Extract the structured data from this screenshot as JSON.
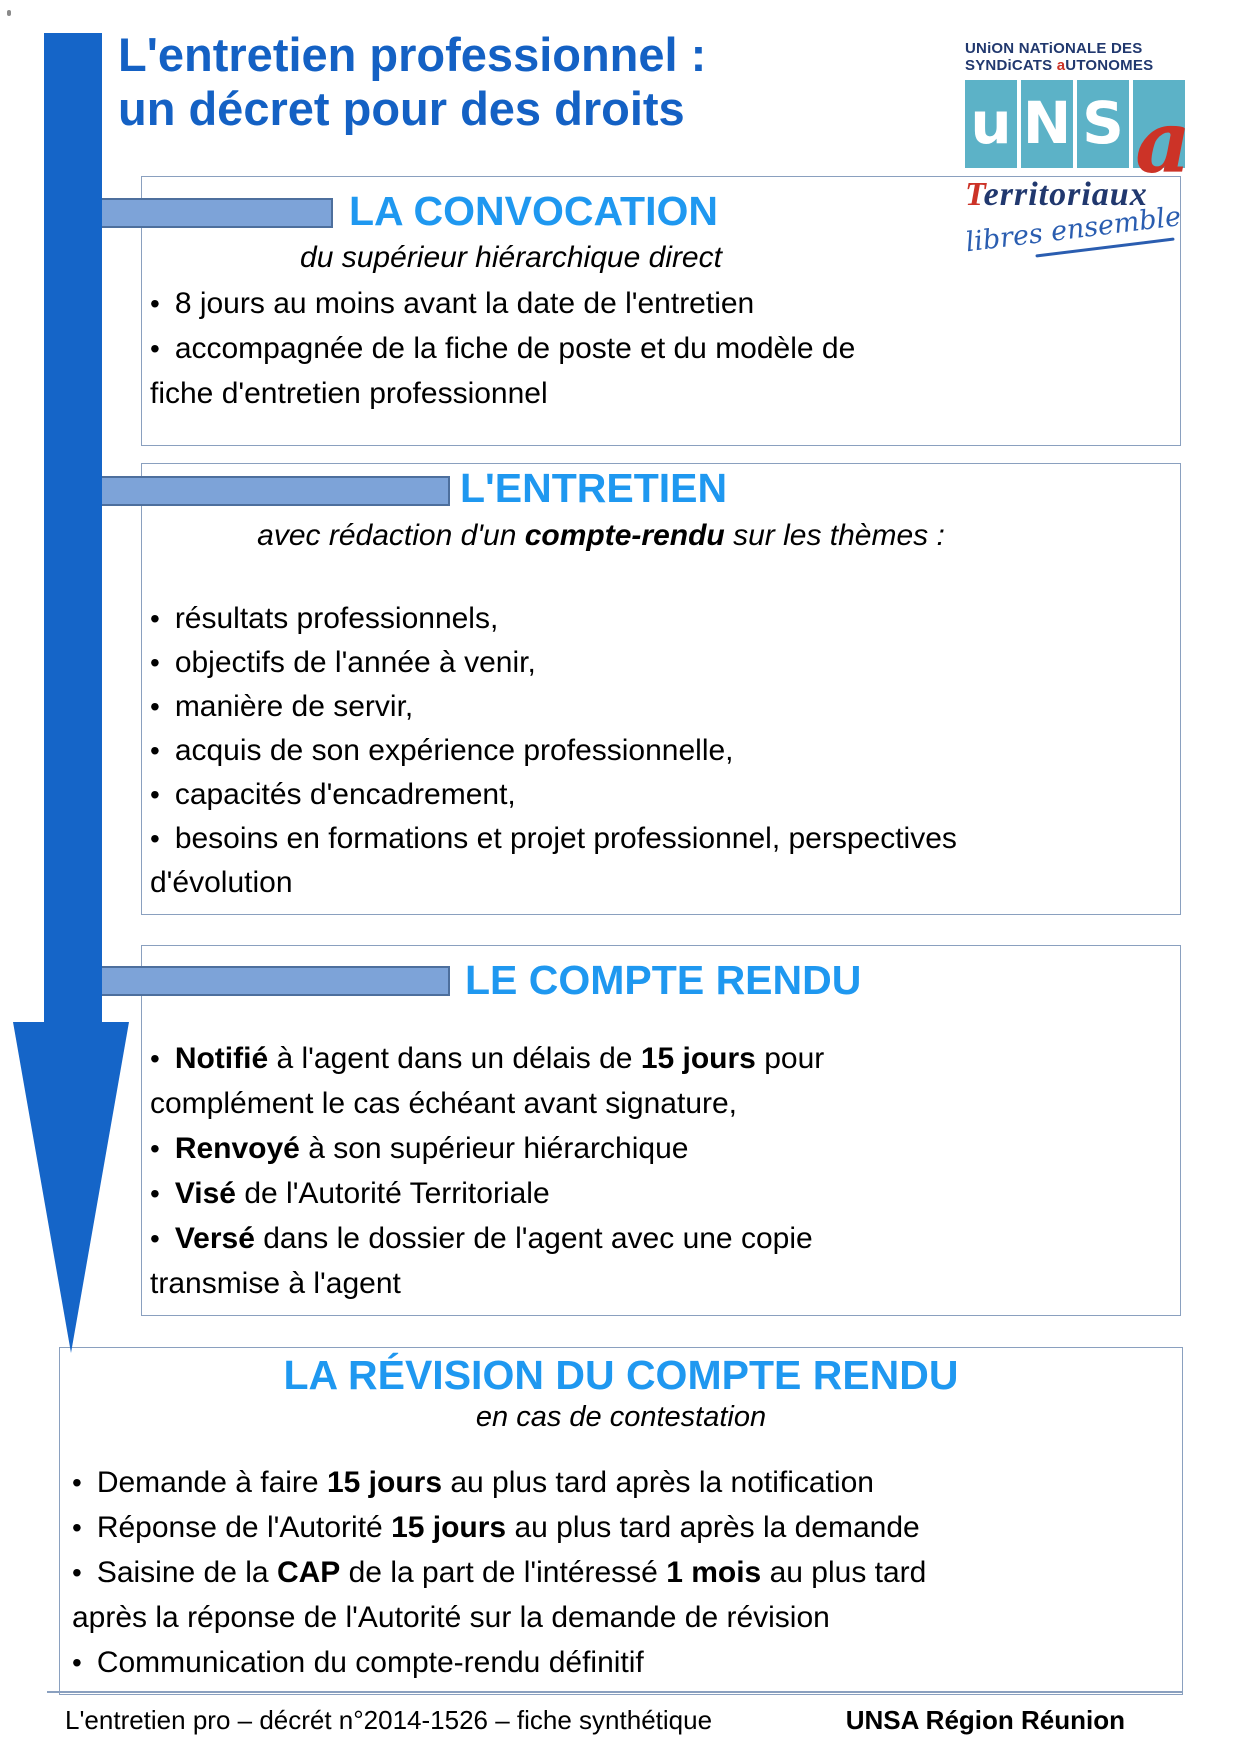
{
  "bullet_char": "•",
  "title": {
    "line1": "L'entretien professionnel :",
    "line2": "un décret pour des droits"
  },
  "logo": {
    "top_line1": "UNiON NATiONALE DES",
    "top_line2_pre": "SYNDiCATS ",
    "top_line2_red": "a",
    "top_line2_post": "UTONOMES",
    "letter_u": "u",
    "letter_n": "N",
    "letter_s": "S",
    "letter_a": "a",
    "territoriaux_t": "T",
    "territoriaux_rest": "erritoriaux",
    "script": "libres ensemble"
  },
  "sections": [
    {
      "title": "LA CONVOCATION",
      "subtitle": [
        {
          "t": "du supérieur hiérarchique direct"
        }
      ],
      "bullets": [
        [
          {
            "t": "8 jours au moins avant la date de l'entretien"
          }
        ],
        [
          {
            "t": "accompagnée de la fiche de poste et du modèle de\nfiche d'entretien professionnel"
          }
        ]
      ]
    },
    {
      "title": "L'ENTRETIEN",
      "subtitle": [
        {
          "t": "avec rédaction d'un "
        },
        {
          "t": "compte-rendu",
          "b": true
        },
        {
          "t": " sur les thèmes :"
        }
      ],
      "bullets": [
        [
          {
            "t": "résultats professionnels,"
          }
        ],
        [
          {
            "t": "objectifs de l'année à venir,"
          }
        ],
        [
          {
            "t": "manière de servir,"
          }
        ],
        [
          {
            "t": "acquis de son expérience professionnelle,"
          }
        ],
        [
          {
            "t": "capacités d'encadrement,"
          }
        ],
        [
          {
            "t": "besoins en formations et projet professionnel, perspectives\nd'évolution"
          }
        ]
      ]
    },
    {
      "title": "LE COMPTE RENDU",
      "subtitle": [],
      "bullets": [
        [
          {
            "t": "Notifié",
            "b": true
          },
          {
            "t": " à l'agent dans un délais de "
          },
          {
            "t": "15 jours",
            "b": true
          },
          {
            "t": " pour\ncomplément le cas échéant avant signature,"
          }
        ],
        [
          {
            "t": "Renvoyé",
            "b": true
          },
          {
            "t": " à son supérieur hiérarchique"
          }
        ],
        [
          {
            "t": "Visé",
            "b": true
          },
          {
            "t": " de l'Autorité Territoriale"
          }
        ],
        [
          {
            "t": "Versé",
            "b": true
          },
          {
            "t": " dans le dossier de l'agent avec une copie\ntransmise à l'agent"
          }
        ]
      ]
    },
    {
      "title": "LA RÉVISION DU COMPTE RENDU",
      "subtitle": [
        {
          "t": "en cas de contestation"
        }
      ],
      "bullets": [
        [
          {
            "t": "Demande à faire "
          },
          {
            "t": "15 jours",
            "b": true
          },
          {
            "t": " au plus tard après la notification"
          }
        ],
        [
          {
            "t": "Réponse de l'Autorité "
          },
          {
            "t": "15 jours",
            "b": true
          },
          {
            "t": " au plus tard après la demande"
          }
        ],
        [
          {
            "t": "Saisine de la "
          },
          {
            "t": "CAP",
            "b": true
          },
          {
            "t": " de la part de l'intéressé "
          },
          {
            "t": "1 mois",
            "b": true
          },
          {
            "t": " au plus tard\naprès la réponse de l'Autorité sur la demande de révision"
          }
        ],
        [
          {
            "t": "Communication du compte-rendu définitif"
          }
        ]
      ]
    }
  ],
  "footer": {
    "left": "L'entretien pro – décrét n°2014-1526 – fiche synthétique",
    "right": "UNSA Région Réunion"
  },
  "colors": {
    "title_blue": "#1461c4",
    "header_blue": "#1f98f0",
    "arrow_blue": "#1565c8",
    "bar_fill": "#7da3d8",
    "bar_border": "#4d6f9d",
    "box_border": "#8aa0bf",
    "logo_teal": "#5cb2c7",
    "logo_navy": "#21386e",
    "logo_red": "#cc3327",
    "script_blue": "#2a5db0"
  }
}
